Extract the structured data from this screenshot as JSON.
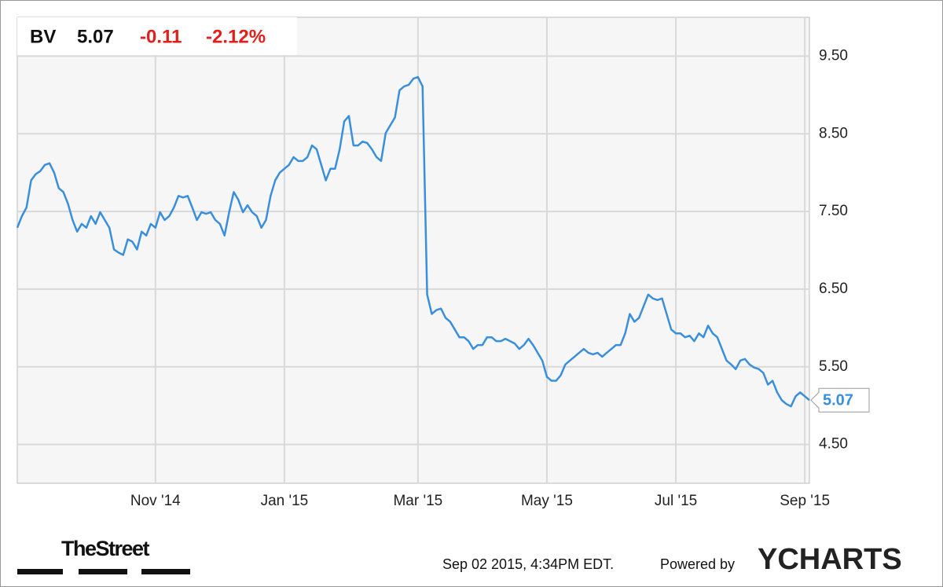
{
  "chart_data": {
    "type": "line",
    "header": {
      "symbol": "BV",
      "price": "5.07",
      "change": "-0.11",
      "change_percent": "-2.12%"
    },
    "series": [
      {
        "name": "BV",
        "color": "#3a8fdc",
        "values": [
          7.29,
          7.44,
          7.55,
          7.9,
          7.98,
          8.02,
          8.1,
          8.12,
          8.0,
          7.8,
          7.75,
          7.6,
          7.39,
          7.24,
          7.34,
          7.29,
          7.44,
          7.34,
          7.49,
          7.39,
          7.29,
          7.01,
          6.97,
          6.94,
          7.14,
          7.11,
          7.01,
          7.24,
          7.19,
          7.34,
          7.29,
          7.49,
          7.39,
          7.44,
          7.55,
          7.7,
          7.68,
          7.7,
          7.55,
          7.39,
          7.49,
          7.47,
          7.49,
          7.39,
          7.34,
          7.19,
          7.49,
          7.75,
          7.65,
          7.49,
          7.58,
          7.49,
          7.44,
          7.29,
          7.39,
          7.7,
          7.9,
          8.0,
          8.05,
          8.1,
          8.2,
          8.15,
          8.15,
          8.2,
          8.35,
          8.3,
          8.1,
          7.9,
          8.05,
          8.05,
          8.3,
          8.66,
          8.73,
          8.35,
          8.35,
          8.4,
          8.38,
          8.3,
          8.2,
          8.15,
          8.51,
          8.61,
          8.71,
          9.06,
          9.11,
          9.13,
          9.21,
          9.23,
          9.11,
          6.43,
          6.18,
          6.23,
          6.25,
          6.13,
          6.08,
          5.98,
          5.88,
          5.88,
          5.83,
          5.73,
          5.78,
          5.78,
          5.88,
          5.88,
          5.83,
          5.83,
          5.86,
          5.83,
          5.8,
          5.73,
          5.78,
          5.86,
          5.78,
          5.68,
          5.58,
          5.37,
          5.32,
          5.32,
          5.39,
          5.53,
          5.58,
          5.63,
          5.68,
          5.73,
          5.68,
          5.66,
          5.68,
          5.63,
          5.68,
          5.73,
          5.78,
          5.78,
          5.93,
          6.18,
          6.08,
          6.13,
          6.28,
          6.43,
          6.38,
          6.36,
          6.38,
          6.18,
          5.98,
          5.93,
          5.93,
          5.88,
          5.9,
          5.83,
          5.93,
          5.88,
          6.03,
          5.93,
          5.88,
          5.73,
          5.58,
          5.53,
          5.47,
          5.58,
          5.6,
          5.53,
          5.49,
          5.47,
          5.42,
          5.27,
          5.32,
          5.17,
          5.07,
          5.02,
          4.99,
          5.12,
          5.17,
          5.12,
          5.07
        ]
      }
    ],
    "xlim": [
      0,
      172
    ],
    "xticks": [
      {
        "value": 30,
        "label": "Nov '14"
      },
      {
        "value": 58,
        "label": "Jan '15"
      },
      {
        "value": 87,
        "label": "Mar '15"
      },
      {
        "value": 115,
        "label": "May '15"
      },
      {
        "value": 143,
        "label": "Jul '15"
      },
      {
        "value": 171,
        "label": "Sep '15"
      }
    ],
    "ylim": [
      4,
      10
    ],
    "yticks": [
      {
        "value": 4.5,
        "label": "4.50"
      },
      {
        "value": 5.5,
        "label": "5.50"
      },
      {
        "value": 6.5,
        "label": "6.50"
      },
      {
        "value": 7.5,
        "label": "7.50"
      },
      {
        "value": 8.5,
        "label": "8.50"
      },
      {
        "value": 9.5,
        "label": "9.50"
      }
    ],
    "grid": true,
    "footer": {
      "logo_left": "TheStreet",
      "timestamp": "Sep 02 2015, 4:34PM EDT.",
      "powered_by": "Powered by",
      "logo_right": "YCHARTS"
    }
  }
}
